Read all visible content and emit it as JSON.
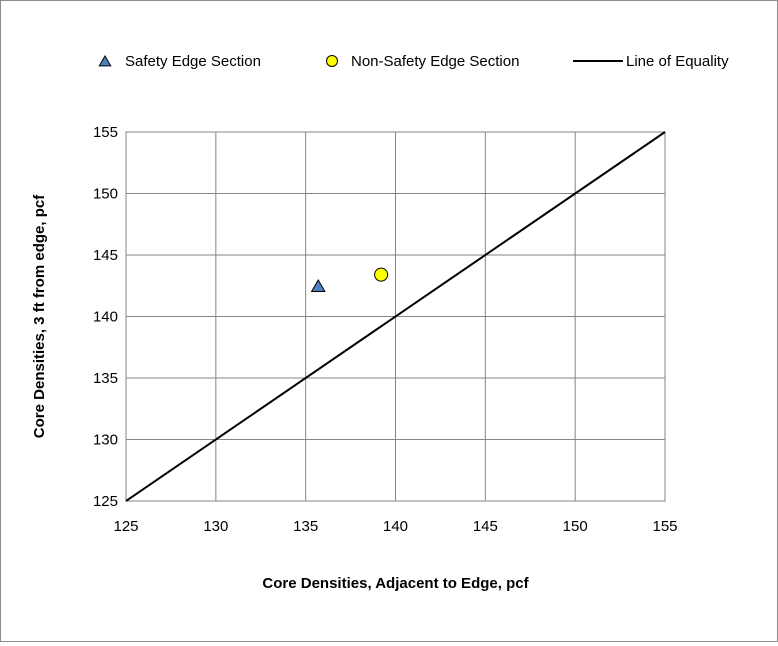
{
  "chart_data": {
    "type": "scatter",
    "title": "",
    "xlabel": "Core Densities, Adjacent to Edge, pcf",
    "ylabel": "Core Densities, 3 ft from edge, pcf",
    "xlim": [
      125,
      155
    ],
    "ylim": [
      125,
      155
    ],
    "x_ticks": [
      "125",
      "130",
      "135",
      "140",
      "145",
      "150",
      "155"
    ],
    "y_ticks": [
      "125",
      "130",
      "135",
      "140",
      "145",
      "150",
      "155"
    ],
    "grid": true,
    "legend_position": "top",
    "series": [
      {
        "name": "Safety Edge Section",
        "marker": "triangle",
        "color": "#4f81bd",
        "points": [
          {
            "x": 135.7,
            "y": 142.4
          }
        ]
      },
      {
        "name": "Non-Safety Edge Section",
        "marker": "circle",
        "color": "#ffff00",
        "points": [
          {
            "x": 139.2,
            "y": 143.4
          }
        ]
      },
      {
        "name": "Line of Equality",
        "marker": "line",
        "color": "#000000",
        "points": [
          {
            "x": 125,
            "y": 125
          },
          {
            "x": 155,
            "y": 155
          }
        ]
      }
    ]
  }
}
